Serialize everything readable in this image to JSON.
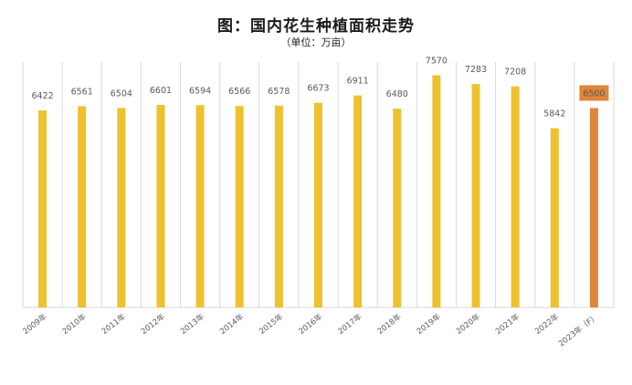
{
  "chart_data": {
    "type": "bar",
    "title": "图：国内花生种植面积走势",
    "subtitle": "（单位：万亩）",
    "xlabel": "",
    "ylabel": "",
    "ylim": [
      0,
      8000
    ],
    "grid": "vertical",
    "categories": [
      "2009年",
      "2010年",
      "2011年",
      "2012年",
      "2013年",
      "2014年",
      "2015年",
      "2016年",
      "2017年",
      "2018年",
      "2019年",
      "2020年",
      "2021年",
      "2022年",
      "2023年（F）"
    ],
    "values": [
      6422,
      6561,
      6504,
      6601,
      6594,
      6566,
      6578,
      6673,
      6911,
      6480,
      7570,
      7283,
      7208,
      5842,
      6500
    ],
    "data_labels": [
      "6422",
      "6561",
      "6504",
      "6601",
      "6594",
      "6566",
      "6578",
      "6673",
      "6911",
      "6480",
      "7570",
      "7283",
      "7208",
      "5842",
      "6500"
    ],
    "colors": {
      "bar": "#EEC12E",
      "forecast_bar": "#E0853A",
      "label_highlight_bg": "#E0853A",
      "label_highlight_text": "#FBE9C6",
      "grid": "#D9D9D9"
    },
    "highlight_index": 14
  }
}
